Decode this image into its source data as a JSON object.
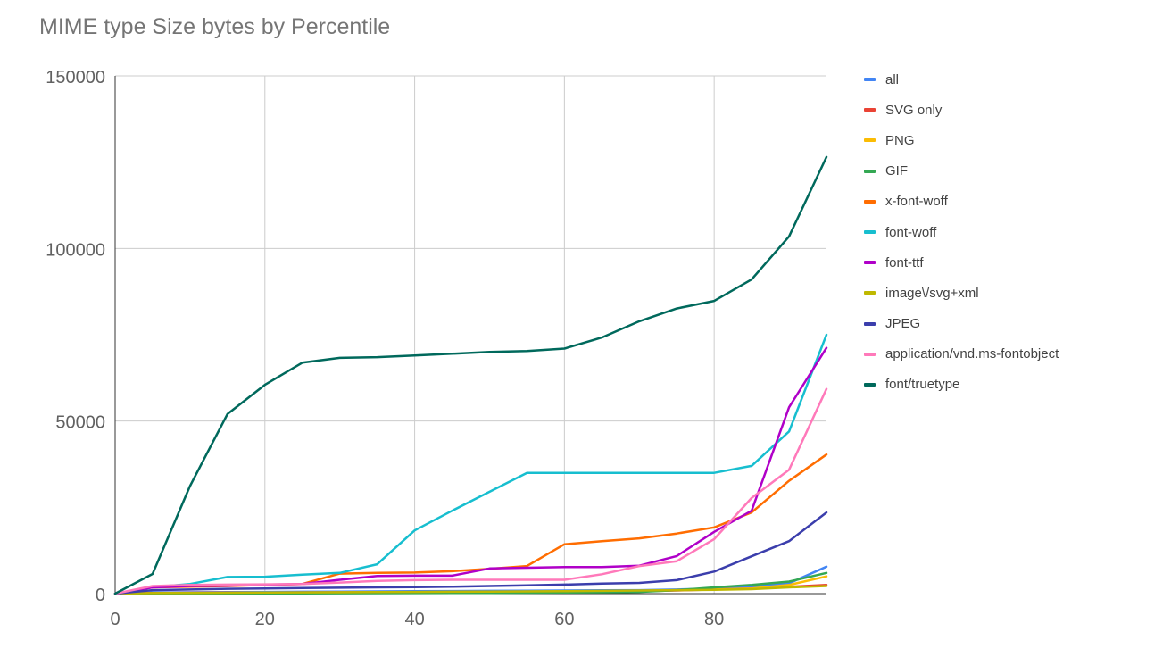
{
  "chart_data": {
    "type": "line",
    "title": "MIME type Size bytes by Percentile",
    "xlabel": "",
    "ylabel": "",
    "xlim": [
      0,
      95
    ],
    "ylim": [
      0,
      150000
    ],
    "x_ticks": [
      0,
      20,
      40,
      60,
      80
    ],
    "y_ticks": [
      0,
      50000,
      100000,
      150000
    ],
    "grid": true,
    "legend_position": "right",
    "x": [
      0,
      5,
      10,
      15,
      20,
      25,
      30,
      35,
      40,
      45,
      50,
      55,
      60,
      65,
      70,
      75,
      80,
      85,
      90,
      95
    ],
    "series": [
      {
        "name": "all",
        "color": "#4285f4",
        "values": [
          0,
          300,
          400,
          450,
          500,
          550,
          600,
          650,
          700,
          750,
          800,
          850,
          900,
          950,
          1000,
          1200,
          1500,
          2000,
          3000,
          7800
        ]
      },
      {
        "name": "SVG only",
        "color": "#ea4335",
        "values": [
          0,
          200,
          250,
          300,
          320,
          350,
          380,
          400,
          420,
          450,
          480,
          500,
          550,
          600,
          700,
          900,
          1200,
          1500,
          2000,
          2500
        ]
      },
      {
        "name": "PNG",
        "color": "#fbbc04",
        "values": [
          0,
          100,
          150,
          200,
          250,
          300,
          350,
          400,
          450,
          500,
          550,
          600,
          650,
          700,
          800,
          1000,
          1200,
          1500,
          2500,
          5000
        ]
      },
      {
        "name": "GIF",
        "color": "#34a853",
        "values": [
          0,
          50,
          60,
          70,
          80,
          90,
          100,
          120,
          150,
          180,
          200,
          250,
          300,
          400,
          500,
          1000,
          1800,
          2500,
          3500,
          6000
        ]
      },
      {
        "name": "x-font-woff",
        "color": "#ff6d01",
        "values": [
          0,
          1800,
          2000,
          2200,
          2500,
          2800,
          5800,
          6000,
          6100,
          6500,
          7200,
          8000,
          14300,
          15200,
          16000,
          17400,
          19200,
          23500,
          32700,
          40300
        ]
      },
      {
        "name": "font-woff",
        "color": "#17becf",
        "values": [
          0,
          1900,
          2800,
          4800,
          4900,
          5500,
          6000,
          8500,
          18300,
          24000,
          29500,
          35000,
          35000,
          35000,
          35000,
          35000,
          35000,
          37000,
          47000,
          75000
        ]
      },
      {
        "name": "font-ttf",
        "color": "#b000c8",
        "values": [
          0,
          1800,
          2200,
          2300,
          2600,
          2800,
          4000,
          5100,
          5200,
          5200,
          7300,
          7500,
          7700,
          7700,
          8100,
          10900,
          17900,
          24000,
          54000,
          71200
        ]
      },
      {
        "name": "image\\/svg+xml",
        "color": "#bfb800",
        "values": [
          0,
          150,
          200,
          250,
          300,
          350,
          400,
          450,
          500,
          550,
          600,
          650,
          700,
          800,
          900,
          1000,
          1100,
          1300,
          1800,
          2200
        ]
      },
      {
        "name": "JPEG",
        "color": "#3b3eac",
        "values": [
          0,
          1000,
          1200,
          1400,
          1500,
          1600,
          1700,
          1800,
          1900,
          2000,
          2200,
          2400,
          2600,
          2900,
          3100,
          3900,
          6400,
          10800,
          15200,
          23500
        ]
      },
      {
        "name": "application/vnd.ms-fontobject",
        "color": "#ff79ba",
        "values": [
          0,
          2200,
          2500,
          2600,
          2700,
          2800,
          3200,
          3700,
          3900,
          4000,
          4000,
          4000,
          4000,
          5600,
          8000,
          9400,
          15800,
          27700,
          35900,
          59300
        ]
      },
      {
        "name": "font/truetype",
        "color": "#00695c",
        "values": [
          0,
          5700,
          31200,
          52000,
          60500,
          66900,
          68300,
          68500,
          69000,
          69500,
          70000,
          70300,
          71000,
          74200,
          78900,
          82600,
          84800,
          91000,
          103500,
          126500
        ]
      }
    ]
  }
}
